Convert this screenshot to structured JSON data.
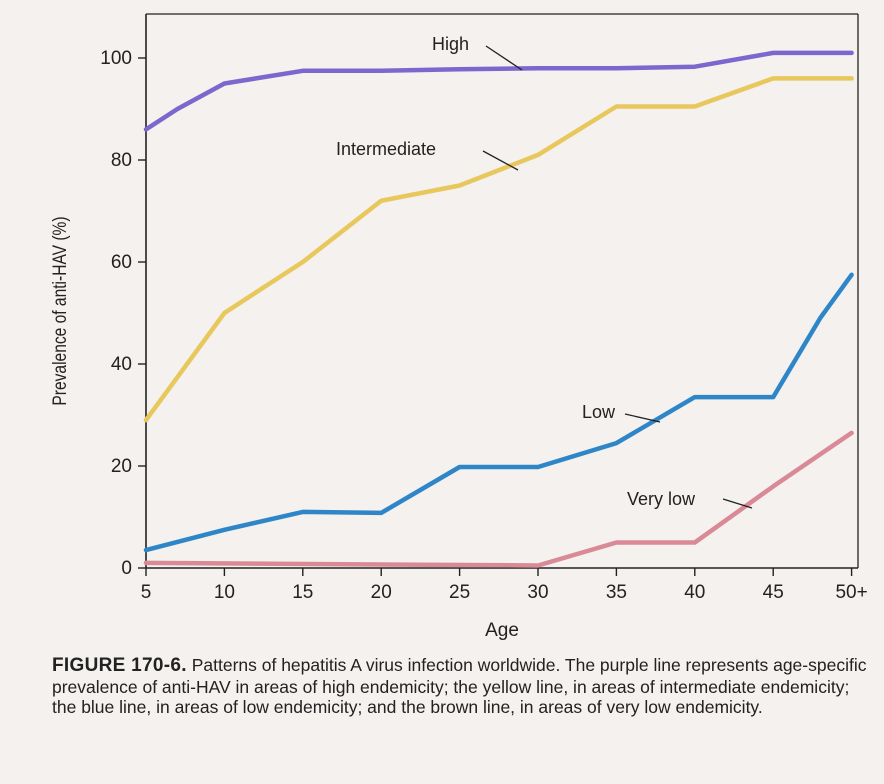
{
  "chart_data": {
    "type": "line",
    "xlabel": "Age",
    "ylabel": "Prevalence of anti-HAV (%)",
    "x_ticks": [
      "5",
      "10",
      "15",
      "20",
      "25",
      "30",
      "35",
      "40",
      "45",
      "50+"
    ],
    "y_ticks": [
      0,
      20,
      40,
      60,
      80,
      100
    ],
    "ylim": [
      0,
      105
    ],
    "grid": false,
    "series": [
      {
        "name": "High",
        "color": "#7b68cf",
        "x": [
          5,
          7,
          10,
          15,
          20,
          25,
          30,
          35,
          40,
          45,
          50
        ],
        "values": [
          86,
          90,
          95,
          97.5,
          97.5,
          97.8,
          98,
          98,
          98.3,
          101,
          101
        ]
      },
      {
        "name": "Intermediate",
        "color": "#e8c85c",
        "x": [
          5,
          10,
          15,
          20,
          25,
          30,
          35,
          40,
          45,
          50
        ],
        "values": [
          29,
          50,
          60,
          72,
          75,
          81,
          90.5,
          90.5,
          96,
          96
        ]
      },
      {
        "name": "Low",
        "color": "#2e86c8",
        "x": [
          5,
          10,
          15,
          20,
          25,
          30,
          35,
          40,
          45,
          48,
          50
        ],
        "values": [
          3.5,
          7.5,
          11,
          10.8,
          19.8,
          19.8,
          24.5,
          33.5,
          33.5,
          49,
          57.5
        ]
      },
      {
        "name": "Very low",
        "color": "#d98a96",
        "x": [
          5,
          30,
          35,
          40,
          45,
          50
        ],
        "values": [
          1,
          0.5,
          5,
          5,
          16,
          26.5
        ]
      }
    ]
  },
  "caption": {
    "label": "FIGURE 170-6.",
    "text": " Patterns of hepatitis A virus infection worldwide. The purple line represents age-specific prevalence of anti-HAV in areas of high endemicity; the yellow line, in areas of intermediate endemicity; the blue line, in areas of low endemicity; and the brown line, in areas of very low endemicity."
  }
}
